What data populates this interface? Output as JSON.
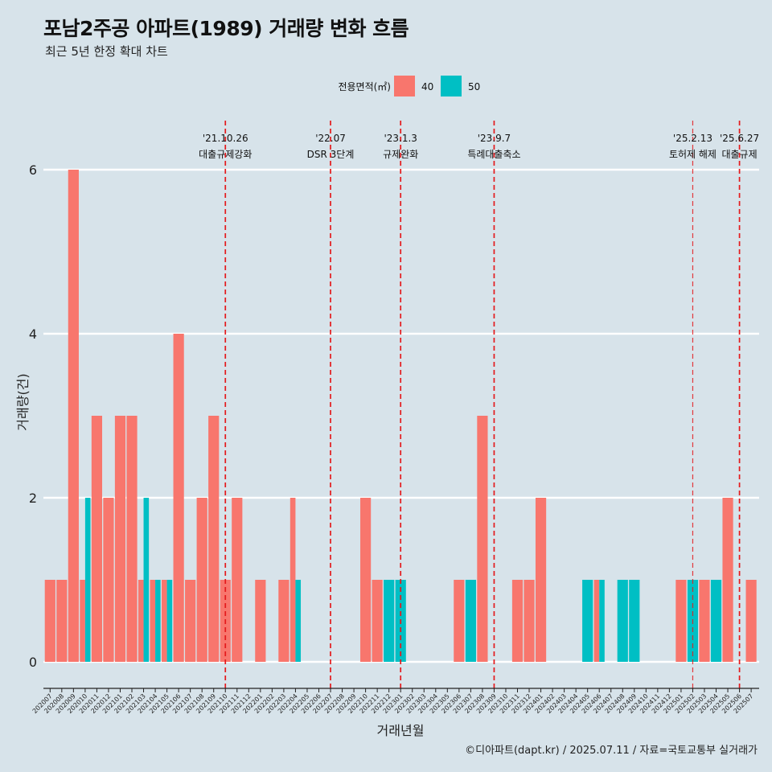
{
  "title": "포남2주공 아파트(1989) 거래량 변화 흐름",
  "subtitle": "최근 5년 한정 확대 차트",
  "caption": "©디아파트(dapt.kr) / 2025.07.11 / 자료=국토교통부 실거래가",
  "colors": {
    "background": "#d7e3ea",
    "s40": "#f8766d",
    "s50": "#00bfc4",
    "event_line": "#e41a1c"
  },
  "chart_data": {
    "type": "bar",
    "xlabel": "거래년월",
    "ylabel": "거래량(건)",
    "ylim": [
      0,
      6
    ],
    "yticks": [
      0,
      2,
      4,
      6
    ],
    "legend": {
      "title": "전용면적(㎡)",
      "position": "top"
    },
    "grid": true,
    "categories": [
      "202007",
      "202008",
      "202009",
      "202010",
      "202011",
      "202012",
      "202101",
      "202102",
      "202103",
      "202104",
      "202105",
      "202106",
      "202107",
      "202108",
      "202109",
      "202110",
      "202111",
      "202112",
      "202201",
      "202202",
      "202203",
      "202204",
      "202205",
      "202206",
      "202207",
      "202208",
      "202209",
      "202210",
      "202211",
      "202212",
      "202301",
      "202302",
      "202303",
      "202304",
      "202305",
      "202306",
      "202307",
      "202308",
      "202309",
      "202310",
      "202311",
      "202312",
      "202401",
      "202402",
      "202403",
      "202404",
      "202405",
      "202406",
      "202407",
      "202408",
      "202409",
      "202410",
      "202411",
      "202412",
      "202501",
      "202502",
      "202503",
      "202504",
      "202505",
      "202506",
      "202507"
    ],
    "series": [
      {
        "name": "40",
        "color": "#f8766d",
        "values": [
          1,
          1,
          6,
          1,
          3,
          2,
          3,
          3,
          1,
          1,
          1,
          4,
          1,
          2,
          3,
          1,
          2,
          0,
          1,
          0,
          1,
          2,
          0,
          0,
          0,
          0,
          0,
          2,
          1,
          0,
          0,
          0,
          0,
          0,
          0,
          1,
          0,
          3,
          0,
          0,
          1,
          1,
          2,
          0,
          0,
          0,
          0,
          1,
          0,
          0,
          0,
          0,
          0,
          0,
          1,
          0,
          1,
          0,
          2,
          0,
          1
        ]
      },
      {
        "name": "50",
        "color": "#00bfc4",
        "values": [
          0,
          0,
          0,
          2,
          0,
          0,
          0,
          0,
          2,
          1,
          1,
          0,
          0,
          0,
          0,
          0,
          0,
          0,
          0,
          0,
          0,
          1,
          0,
          0,
          0,
          0,
          0,
          0,
          0,
          1,
          1,
          0,
          0,
          0,
          0,
          0,
          1,
          0,
          0,
          0,
          0,
          0,
          0,
          0,
          0,
          0,
          1,
          1,
          0,
          1,
          1,
          0,
          0,
          0,
          0,
          1,
          0,
          1,
          0,
          0,
          0
        ]
      }
    ],
    "events": [
      {
        "category": "202110",
        "date": "'21.10.26",
        "label": "대출규제강화"
      },
      {
        "category": "202207",
        "date": "'22.07",
        "label": "DSR 3단계"
      },
      {
        "category": "202301",
        "date": "'23.1.3",
        "label": "규제완화"
      },
      {
        "category": "202309",
        "date": "'23.9.7",
        "label": "특례대출축소"
      },
      {
        "category": "202502",
        "date": "'25.2.13",
        "label": "토허제 해제"
      },
      {
        "category": "202506",
        "date": "'25.6.27",
        "label": "대출규제"
      }
    ]
  }
}
